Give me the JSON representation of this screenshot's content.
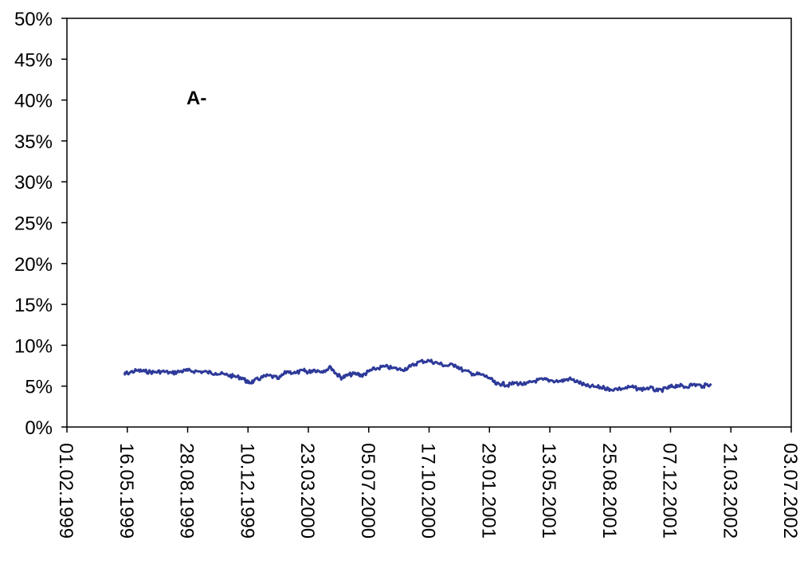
{
  "chart_data": {
    "type": "line",
    "title": "",
    "xlabel": "",
    "ylabel": "",
    "annotation": "A-",
    "ylim": [
      0,
      50
    ],
    "xlim": [
      "01.02.1999",
      "03.07.2002"
    ],
    "y_ticks": [
      "0%",
      "5%",
      "10%",
      "15%",
      "20%",
      "25%",
      "30%",
      "35%",
      "40%",
      "45%",
      "50%"
    ],
    "x_ticks": [
      "01.02.1999",
      "16.05.1999",
      "28.08.1999",
      "10.12.1999",
      "23.03.2000",
      "05.07.2000",
      "17.10.2000",
      "29.01.2001",
      "13.05.2001",
      "25.08.2001",
      "07.12.2001",
      "21.03.2002",
      "03.07.2002"
    ],
    "grid": false,
    "legend": "none",
    "series": [
      {
        "color": "#2e3a99",
        "x": [
          "10.05.1999",
          "16.05.1999",
          "01.06.1999",
          "15.06.1999",
          "01.07.1999",
          "15.07.1999",
          "01.08.1999",
          "15.08.1999",
          "28.08.1999",
          "15.09.1999",
          "01.10.1999",
          "15.10.1999",
          "01.11.1999",
          "15.11.1999",
          "01.12.1999",
          "10.12.1999",
          "20.12.1999",
          "01.01.2000",
          "15.01.2000",
          "01.02.2000",
          "15.02.2000",
          "01.03.2000",
          "15.03.2000",
          "23.03.2000",
          "01.04.2000",
          "15.04.2000",
          "01.05.2000",
          "10.05.2000",
          "20.05.2000",
          "01.06.2000",
          "15.06.2000",
          "25.06.2000",
          "05.07.2000",
          "15.07.2000",
          "01.08.2000",
          "15.08.2000",
          "01.09.2000",
          "15.09.2000",
          "01.10.2000",
          "17.10.2000",
          "01.11.2000",
          "15.11.2000",
          "01.12.2000",
          "15.12.2000",
          "01.01.2001",
          "15.01.2001",
          "29.01.2001",
          "10.02.2001",
          "20.02.2001",
          "01.03.2001",
          "15.03.2001",
          "01.04.2001",
          "15.04.2001",
          "01.05.2001",
          "13.05.2001",
          "01.06.2001",
          "15.06.2001",
          "01.07.2001",
          "15.07.2001",
          "01.08.2001",
          "15.08.2001",
          "25.08.2001",
          "15.09.2001",
          "01.10.2001",
          "15.10.2001",
          "01.11.2001",
          "15.11.2001",
          "01.12.2001",
          "07.12.2001",
          "20.12.2001",
          "01.01.2002",
          "15.01.2002",
          "01.02.2002",
          "15.02.2002"
        ],
        "values": [
          6.4,
          6.6,
          6.9,
          6.8,
          6.7,
          6.8,
          6.6,
          6.8,
          6.9,
          6.8,
          6.7,
          6.6,
          6.4,
          6.2,
          6.0,
          5.4,
          5.6,
          6.0,
          6.3,
          5.9,
          6.8,
          6.6,
          6.9,
          6.7,
          7.0,
          6.8,
          7.3,
          6.5,
          6.0,
          6.4,
          6.5,
          6.3,
          6.8,
          7.1,
          7.4,
          7.2,
          7.0,
          7.4,
          8.0,
          8.1,
          7.8,
          7.5,
          7.6,
          6.9,
          6.5,
          6.4,
          6.0,
          5.2,
          5.3,
          5.1,
          5.4,
          5.2,
          5.6,
          5.8,
          5.7,
          5.6,
          5.9,
          5.5,
          5.0,
          4.9,
          4.8,
          4.6,
          4.7,
          4.9,
          4.6,
          4.8,
          4.4,
          4.7,
          4.9,
          5.1,
          4.9,
          5.2,
          5.0,
          5.3
        ]
      }
    ]
  }
}
